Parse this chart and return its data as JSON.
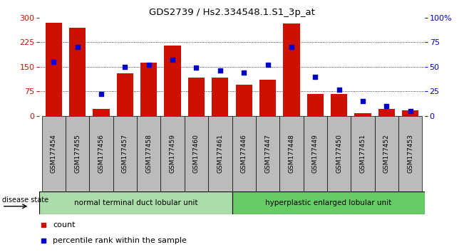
{
  "title": "GDS2739 / Hs2.334548.1.S1_3p_at",
  "samples": [
    "GSM177454",
    "GSM177455",
    "GSM177456",
    "GSM177457",
    "GSM177458",
    "GSM177459",
    "GSM177460",
    "GSM177461",
    "GSM177446",
    "GSM177447",
    "GSM177448",
    "GSM177449",
    "GSM177450",
    "GSM177451",
    "GSM177452",
    "GSM177453"
  ],
  "counts": [
    285,
    270,
    22,
    130,
    162,
    215,
    118,
    118,
    95,
    110,
    283,
    68,
    68,
    8,
    22,
    18
  ],
  "percentiles": [
    55,
    70,
    22,
    50,
    52,
    57,
    49,
    46,
    44,
    52,
    70,
    40,
    27,
    15,
    10,
    5
  ],
  "group1_label": "normal terminal duct lobular unit",
  "group2_label": "hyperplastic enlarged lobular unit",
  "group1_count": 8,
  "group2_count": 8,
  "ylim_left": [
    0,
    300
  ],
  "ylim_right": [
    0,
    100
  ],
  "yticks_left": [
    0,
    75,
    150,
    225,
    300
  ],
  "yticks_right": [
    0,
    25,
    50,
    75,
    100
  ],
  "bar_color": "#cc1100",
  "dot_color": "#0000cc",
  "group1_color": "#aaddaa",
  "group2_color": "#66cc66",
  "xticklabel_bg": "#bbbbbb",
  "disease_state_label": "disease state"
}
